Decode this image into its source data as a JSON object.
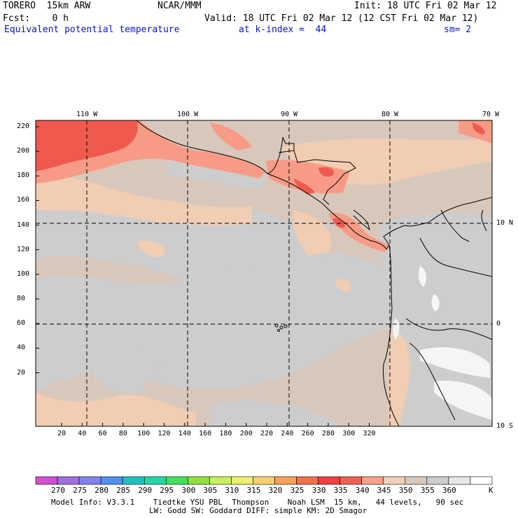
{
  "header": {
    "model_name": "TORERO  15km ARW",
    "center": "NCAR/MMM",
    "init": "Init: 18 UTC Fri 02 Mar 12",
    "fcst": "Fcst:    0 h",
    "valid": "Valid: 18 UTC Fri 02 Mar 12 (12 CST Fri 02 Mar 12)",
    "field": "Equivalent potential temperature",
    "level": "at k-index =  44",
    "smoothing": "sm= 2"
  },
  "map": {
    "top_lon_labels": [
      "110 W",
      "100 W",
      "90 W",
      "80 W",
      "70 W"
    ],
    "right_lat_labels": [
      "10 N",
      "0",
      "10 S"
    ],
    "y_ticks": [
      "220",
      "200",
      "180",
      "160",
      "140",
      "120",
      "100",
      "80",
      "60",
      "40",
      "20"
    ],
    "x_ticks": [
      "20",
      "40",
      "60",
      "80",
      "100",
      "120",
      "140",
      "160",
      "180",
      "200",
      "220",
      "240",
      "260",
      "280",
      "300",
      "320"
    ],
    "colors": {
      "ocean_base": "#d8c8bc",
      "cool_gray": "#cdcdcd",
      "warm_peach": "#f1cdb3",
      "salmon": "#f79b86",
      "red": "#f05a4e",
      "white": "#f5f5f5",
      "coast": "#000000"
    }
  },
  "colorbar": {
    "levels": [
      "270",
      "275",
      "280",
      "285",
      "290",
      "295",
      "300",
      "305",
      "310",
      "315",
      "320",
      "325",
      "330",
      "335",
      "340",
      "345",
      "350",
      "355",
      "360"
    ],
    "unit": "K",
    "colors": [
      "#d050d0",
      "#a070e0",
      "#8080f0",
      "#5090f0",
      "#20c0c0",
      "#20d8a0",
      "#40e060",
      "#90e040",
      "#c8f060",
      "#f0f070",
      "#f8d070",
      "#f8a058",
      "#f07048",
      "#f04040",
      "#f06050",
      "#f8a088",
      "#f0d0b8",
      "#d8c8bc",
      "#cdcdcd",
      "#e8e8e8",
      "#ffffff"
    ]
  },
  "footer": {
    "line1": "Model Info: V3.3.1    Tiedtke YSU PBL  Thompson    Noah LSM  15 km,   44 levels,   90 sec",
    "line2": "LW: Godd SW: Goddard DIFF: simple KM: 2D Smagor"
  }
}
